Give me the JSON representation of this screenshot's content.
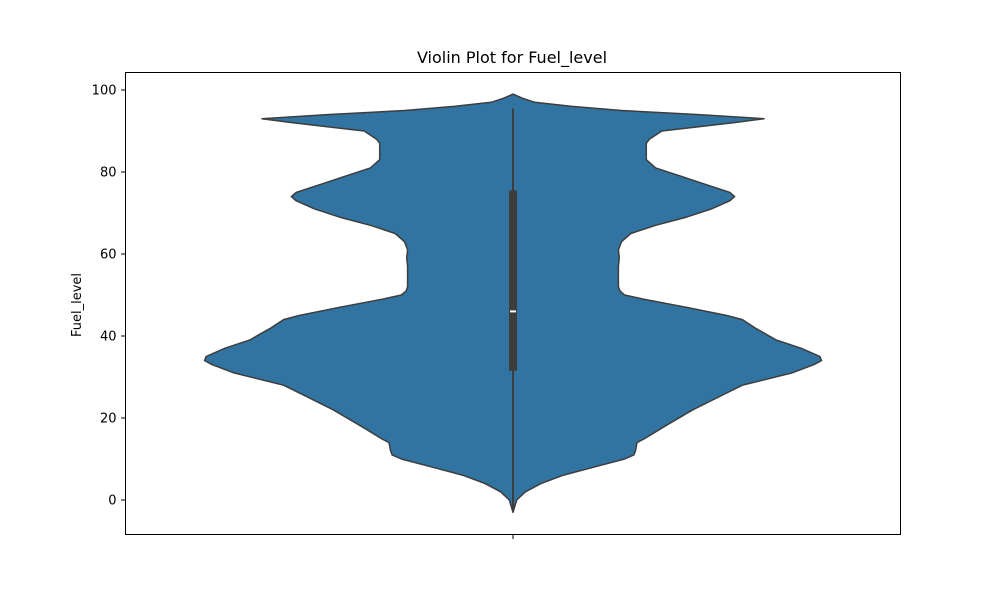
{
  "chart_data": {
    "type": "violin",
    "title": "Violin Plot for Fuel_level",
    "xlabel": "",
    "ylabel": "Fuel_level",
    "ylim": [
      -8,
      105
    ],
    "yticks": [
      0,
      20,
      40,
      60,
      80,
      100
    ],
    "grid": false,
    "legend": "none",
    "fill_color": "#3274a1",
    "edge_color": "#3d3d3d",
    "series": [
      {
        "density_profile": [
          [
            -3,
            0.0
          ],
          [
            0,
            0.012
          ],
          [
            2,
            0.04
          ],
          [
            4,
            0.09
          ],
          [
            6,
            0.16
          ],
          [
            8,
            0.26
          ],
          [
            10,
            0.36
          ],
          [
            11,
            0.39
          ],
          [
            12,
            0.395
          ],
          [
            14,
            0.4
          ],
          [
            15,
            0.425
          ],
          [
            18,
            0.49
          ],
          [
            22,
            0.58
          ],
          [
            25,
            0.66
          ],
          [
            28,
            0.74
          ],
          [
            31,
            0.9
          ],
          [
            33,
            0.97
          ],
          [
            34,
            0.995
          ],
          [
            35,
            0.99
          ],
          [
            37,
            0.93
          ],
          [
            39,
            0.85
          ],
          [
            42,
            0.78
          ],
          [
            44,
            0.74
          ],
          [
            45,
            0.69
          ],
          [
            47,
            0.56
          ],
          [
            49,
            0.42
          ],
          [
            50,
            0.36
          ],
          [
            51,
            0.345
          ],
          [
            52,
            0.34
          ],
          [
            55,
            0.34
          ],
          [
            57,
            0.34
          ],
          [
            59,
            0.343
          ],
          [
            61,
            0.34
          ],
          [
            63,
            0.35
          ],
          [
            65,
            0.38
          ],
          [
            67,
            0.46
          ],
          [
            69,
            0.56
          ],
          [
            71,
            0.64
          ],
          [
            73,
            0.7
          ],
          [
            74,
            0.715
          ],
          [
            75,
            0.7
          ],
          [
            77,
            0.62
          ],
          [
            79,
            0.54
          ],
          [
            81,
            0.46
          ],
          [
            83,
            0.43
          ],
          [
            85,
            0.43
          ],
          [
            87,
            0.43
          ],
          [
            88,
            0.44
          ],
          [
            90,
            0.48
          ],
          [
            92,
            0.71
          ],
          [
            93,
            0.81
          ],
          [
            94,
            0.6
          ],
          [
            95,
            0.35
          ],
          [
            96,
            0.19
          ],
          [
            97,
            0.07
          ],
          [
            98,
            0.03
          ],
          [
            99,
            0.0
          ]
        ],
        "whisker_low": -3,
        "q1": 31.5,
        "median": 46,
        "q3": 75.5,
        "whisker_high": 95.5
      }
    ]
  }
}
